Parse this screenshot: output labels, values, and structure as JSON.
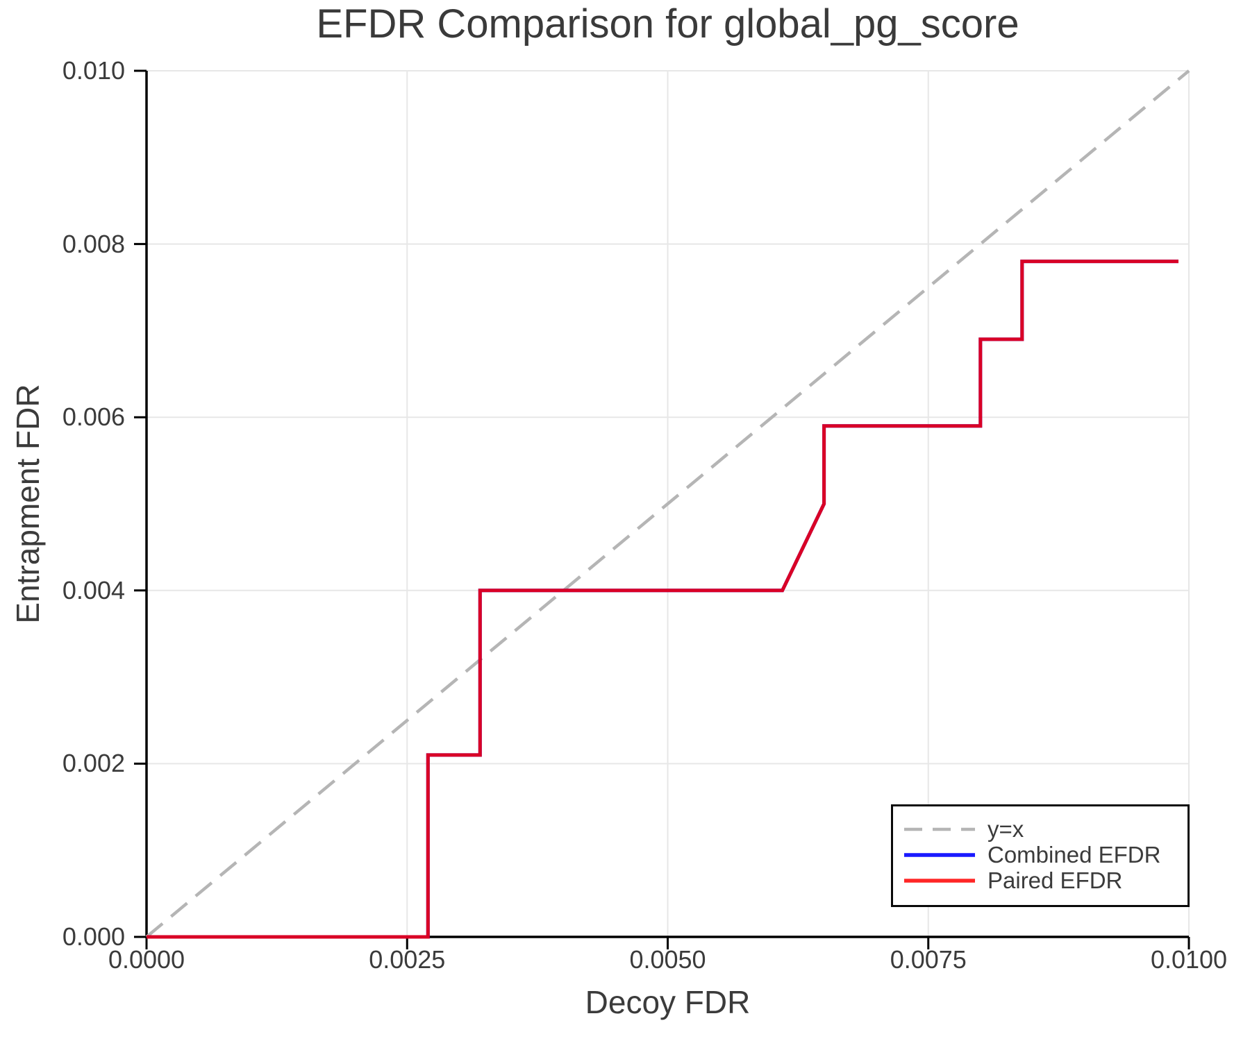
{
  "title": "EFDR Comparison for global_pg_score",
  "axes": {
    "x": {
      "label": "Decoy FDR",
      "ticks": [
        "0.0000",
        "0.0025",
        "0.0050",
        "0.0075",
        "0.0100"
      ],
      "tick_values": [
        0,
        0.0025,
        0.005,
        0.0075,
        0.01
      ]
    },
    "y": {
      "label": "Entrapment FDR",
      "ticks": [
        "0.000",
        "0.002",
        "0.004",
        "0.006",
        "0.008",
        "0.010"
      ],
      "tick_values": [
        0,
        0.002,
        0.004,
        0.006,
        0.008,
        0.01
      ]
    }
  },
  "legend": {
    "entries": [
      {
        "label": "y=x",
        "style": "dashed",
        "color": "#b5b5b5"
      },
      {
        "label": "Combined EFDR",
        "style": "solid",
        "color": "#0000ff"
      },
      {
        "label": "Paired EFDR",
        "style": "solid",
        "color": "#ff0000"
      }
    ]
  },
  "colors": {
    "background": "#ffffff",
    "text": "#3b3b3b",
    "gridline": "#e7e7e7",
    "spine": "#000000",
    "identity_line": "#b5b5b5",
    "combined_efdr": "#0000ff",
    "paired_efdr": "#ff0000"
  },
  "chart_data": {
    "type": "line",
    "title": "EFDR Comparison for global_pg_score",
    "xlabel": "Decoy FDR",
    "ylabel": "Entrapment FDR",
    "xlim": [
      0,
      0.01
    ],
    "ylim": [
      0,
      0.01
    ],
    "grid": true,
    "legend_position": "lower right",
    "series": [
      {
        "name": "y=x",
        "style": "dashed",
        "color": "#b5b5b5",
        "width": 4.5,
        "opacity": 1,
        "points": [
          [
            0,
            0
          ],
          [
            0.01,
            0.01
          ]
        ]
      },
      {
        "name": "Combined EFDR",
        "style": "solid",
        "color": "#0000ff",
        "width": 5,
        "opacity": 1,
        "points": [
          [
            0.0,
            0.0
          ],
          [
            0.0027,
            0.0
          ],
          [
            0.0027,
            0.0021
          ],
          [
            0.0032,
            0.0021
          ],
          [
            0.0032,
            0.004
          ],
          [
            0.0061,
            0.004
          ],
          [
            0.0065,
            0.005
          ],
          [
            0.0065,
            0.0059
          ],
          [
            0.008,
            0.0059
          ],
          [
            0.008,
            0.0069
          ],
          [
            0.0084,
            0.0069
          ],
          [
            0.0084,
            0.0078
          ],
          [
            0.0099,
            0.0078
          ]
        ]
      },
      {
        "name": "Paired EFDR",
        "style": "solid",
        "color": "#ff0000",
        "width": 5,
        "opacity": 0.85,
        "points": [
          [
            0.0,
            0.0
          ],
          [
            0.0027,
            0.0
          ],
          [
            0.0027,
            0.0021
          ],
          [
            0.0032,
            0.0021
          ],
          [
            0.0032,
            0.004
          ],
          [
            0.0061,
            0.004
          ],
          [
            0.0065,
            0.005
          ],
          [
            0.0065,
            0.0059
          ],
          [
            0.008,
            0.0059
          ],
          [
            0.008,
            0.0069
          ],
          [
            0.0084,
            0.0069
          ],
          [
            0.0084,
            0.0078
          ],
          [
            0.0099,
            0.0078
          ]
        ]
      }
    ]
  }
}
